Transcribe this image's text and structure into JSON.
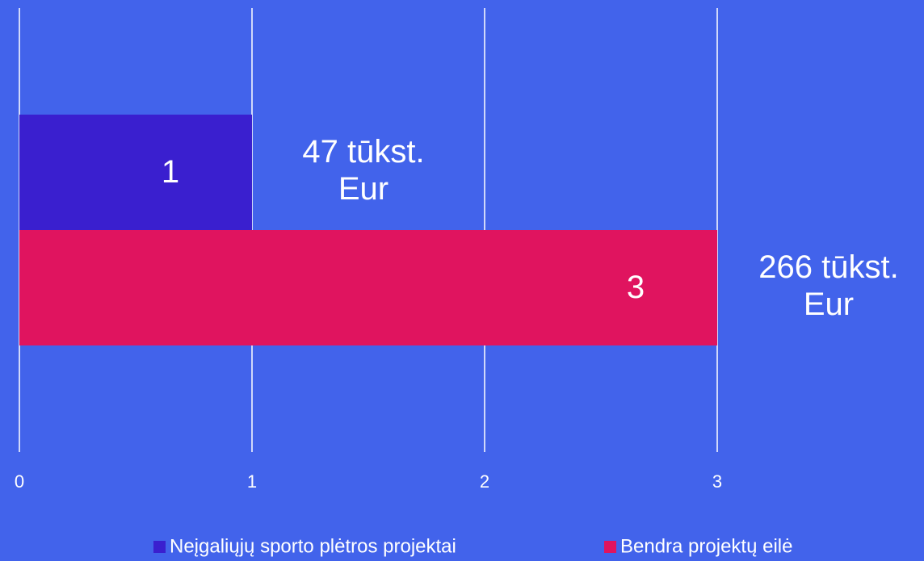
{
  "chart_data": {
    "type": "bar",
    "orientation": "horizontal",
    "categories": [
      null
    ],
    "series": [
      {
        "name": "Neįgaliųjų sporto plėtros projektai",
        "color": "#3a1fcf",
        "values": [
          1
        ],
        "annotation": [
          "47 tūkst.",
          "Eur"
        ]
      },
      {
        "name": "Bendra projektų eilė",
        "color": "#e0145f",
        "values": [
          3
        ],
        "annotation": [
          "266 tūkst.",
          "Eur"
        ]
      }
    ],
    "xlim": [
      0,
      3
    ],
    "xticks": [
      0,
      1,
      2,
      3
    ],
    "grid": true,
    "legend": "bottom",
    "background": "#4263eb"
  }
}
